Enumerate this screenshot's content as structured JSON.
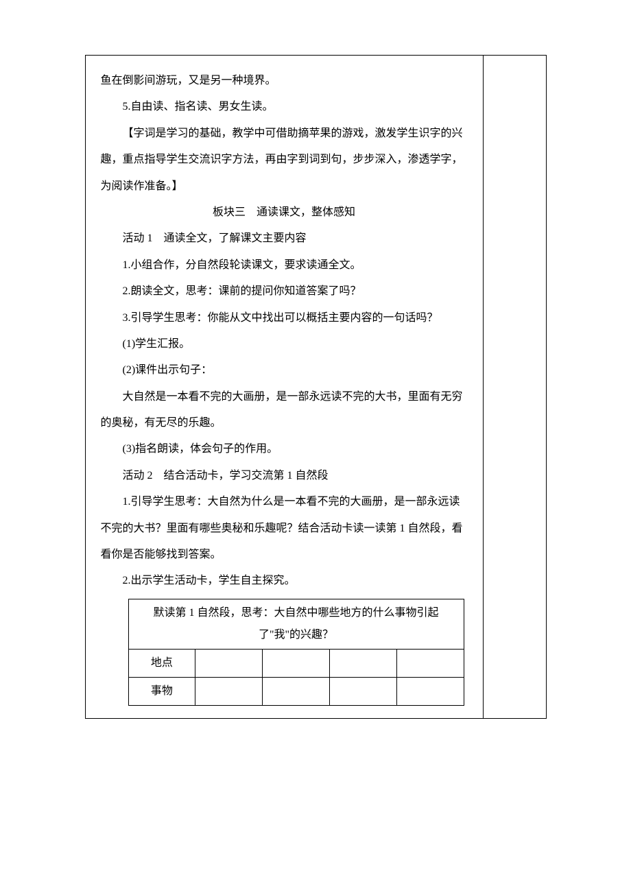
{
  "main": {
    "line1": "鱼在倒影间游玩，又是另一种境界。",
    "line2": "5.自由读、指名读、男女生读。",
    "note": "【字词是学习的基础，教学中可借助摘苹果的游戏，激发学生识字的兴趣，重点指导学生交流识字方法，再由字到词到句，步步深入，渗透学字，为阅读作准备。】",
    "section_heading": "板块三　通读课文，整体感知",
    "activity1_title": "活动 1　通读全文，了解课文主要内容",
    "a1_i1": "1.小组合作，分自然段轮读课文，要求读通全文。",
    "a1_i2": "2.朗读全文，思考：课前的提问你知道答案了吗？",
    "a1_i3": "3.引导学生思考：你能从文中找出可以概括主要内容的一句话吗？",
    "a1_s1": "(1)学生汇报。",
    "a1_s2": "(2)课件出示句子：",
    "a1_quote": "大自然是一本看不完的大画册，是一部永远读不完的大书，里面有无穷的奥秘，有无尽的乐趣。",
    "a1_s3": "(3)指名朗读，体会句子的作用。",
    "activity2_title": "活动 2　结合活动卡，学习交流第 1 自然段",
    "a2_i1": "1.引导学生思考：大自然为什么是一本看不完的大画册，是一部永远读不完的大书？里面有哪些奥秘和乐趣呢？结合活动卡读一读第 1 自然段，看看你是否能够找到答案。",
    "a2_i2": "2.出示学生活动卡，学生自主探究。"
  },
  "inner_table": {
    "caption": "默读第 1 自然段，思考：大自然中哪些地方的什么事物引起了\"我\"的兴趣？",
    "row1_label": "地点",
    "row2_label": "事物",
    "blank": ""
  }
}
